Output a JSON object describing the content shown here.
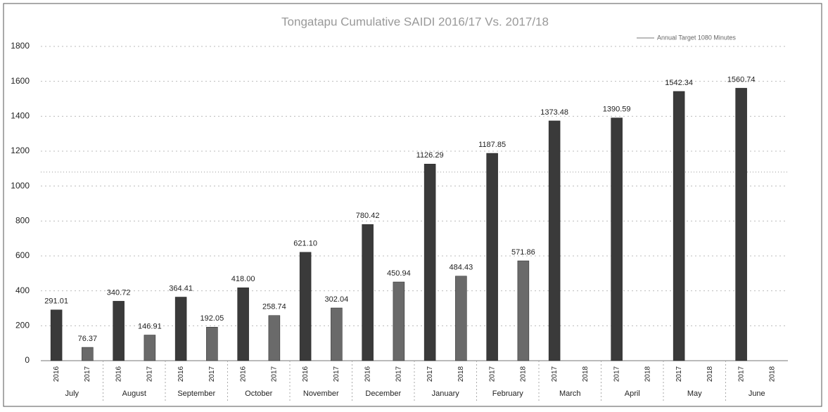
{
  "chart_data": {
    "type": "bar",
    "title": "Tongatapu Cumulative SAIDI 2016/17 Vs. 2017/18",
    "categories": [
      "July",
      "August",
      "September",
      "October",
      "November",
      "December",
      "January",
      "February",
      "March",
      "April",
      "May",
      "June"
    ],
    "sub_labels": [
      [
        "2016",
        "2017"
      ],
      [
        "2016",
        "2017"
      ],
      [
        "2016",
        "2017"
      ],
      [
        "2016",
        "2017"
      ],
      [
        "2016",
        "2017"
      ],
      [
        "2016",
        "2017"
      ],
      [
        "2017",
        "2018"
      ],
      [
        "2017",
        "2018"
      ],
      [
        "2017",
        "2018"
      ],
      [
        "2017",
        "2018"
      ],
      [
        "2017",
        "2018"
      ],
      [
        "2017",
        "2018"
      ]
    ],
    "series": [
      {
        "color": "#3a3a3a",
        "values": [
          291.01,
          340.72,
          364.41,
          418.0,
          621.1,
          780.42,
          1126.29,
          1187.85,
          1373.48,
          1390.59,
          1542.34,
          1560.74
        ],
        "value_labels": [
          "291.01",
          "340.72",
          "364.41",
          "418.00",
          "621.10",
          "780.42",
          "1126.29",
          "1187.85",
          "1373.48",
          "1390.59",
          "1542.34",
          "1560.74"
        ]
      },
      {
        "color": "#6a6a6a",
        "values": [
          76.37,
          146.91,
          192.05,
          258.74,
          302.04,
          450.94,
          484.43,
          571.86,
          null,
          null,
          null,
          null
        ],
        "value_labels": [
          "76.37",
          "146.91",
          "192.05",
          "258.74",
          "302.04",
          "450.94",
          "484.43",
          "571.86",
          null,
          null,
          null,
          null
        ]
      }
    ],
    "target": {
      "value": 1080,
      "label": "Annual Target 1080 Minutes"
    },
    "ylim": [
      0,
      1800
    ],
    "yticks": [
      0,
      200,
      400,
      600,
      800,
      1000,
      1200,
      1400,
      1600,
      1800
    ],
    "grid": true
  }
}
